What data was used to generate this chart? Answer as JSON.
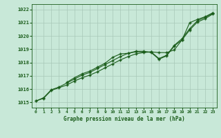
{
  "bg_color": "#c8e8d8",
  "grid_color": "#a8c8b8",
  "line_color": "#1a5c1a",
  "marker_color": "#1a5c1a",
  "title": "Graphe pression niveau de la mer (hPa)",
  "title_color": "#1a5c1a",
  "xlim": [
    -0.5,
    23.5
  ],
  "ylim": [
    1014.6,
    1022.4
  ],
  "yticks": [
    1015,
    1016,
    1017,
    1018,
    1019,
    1020,
    1021,
    1022
  ],
  "xticks": [
    0,
    1,
    2,
    3,
    4,
    5,
    6,
    7,
    8,
    9,
    10,
    11,
    12,
    13,
    14,
    15,
    16,
    17,
    18,
    19,
    20,
    21,
    22,
    23
  ],
  "series1_x": [
    0,
    1,
    2,
    3,
    4,
    5,
    6,
    7,
    8,
    9,
    10,
    11,
    12,
    13,
    14,
    15,
    16,
    17,
    18,
    19,
    20,
    21,
    22,
    23
  ],
  "series1_y": [
    1015.1,
    1015.3,
    1015.9,
    1016.1,
    1016.3,
    1016.6,
    1016.85,
    1017.05,
    1017.3,
    1017.6,
    1017.9,
    1018.2,
    1018.45,
    1018.65,
    1018.75,
    1018.8,
    1018.75,
    1018.75,
    1018.95,
    1019.7,
    1021.0,
    1021.25,
    1021.45,
    1021.75
  ],
  "series2_x": [
    0,
    1,
    2,
    3,
    4,
    5,
    6,
    7,
    8,
    9,
    10,
    11,
    12,
    13,
    14,
    15,
    16,
    17,
    18,
    19,
    20,
    21,
    22,
    23
  ],
  "series2_y": [
    1015.1,
    1015.35,
    1015.95,
    1016.15,
    1016.45,
    1016.75,
    1017.05,
    1017.25,
    1017.55,
    1017.85,
    1018.15,
    1018.45,
    1018.7,
    1018.8,
    1018.8,
    1018.8,
    1018.3,
    1018.55,
    1019.3,
    1019.8,
    1020.55,
    1021.15,
    1021.4,
    1021.7
  ],
  "series3_x": [
    4,
    5,
    6,
    7,
    8,
    9,
    10,
    11,
    12,
    13,
    14,
    15,
    16,
    17,
    18,
    19,
    20,
    21,
    22,
    23
  ],
  "series3_y": [
    1016.5,
    1016.85,
    1017.15,
    1017.35,
    1017.65,
    1017.95,
    1018.4,
    1018.65,
    1018.7,
    1018.85,
    1018.85,
    1018.75,
    1018.25,
    1018.5,
    1019.25,
    1019.7,
    1020.45,
    1021.05,
    1021.3,
    1021.65
  ]
}
